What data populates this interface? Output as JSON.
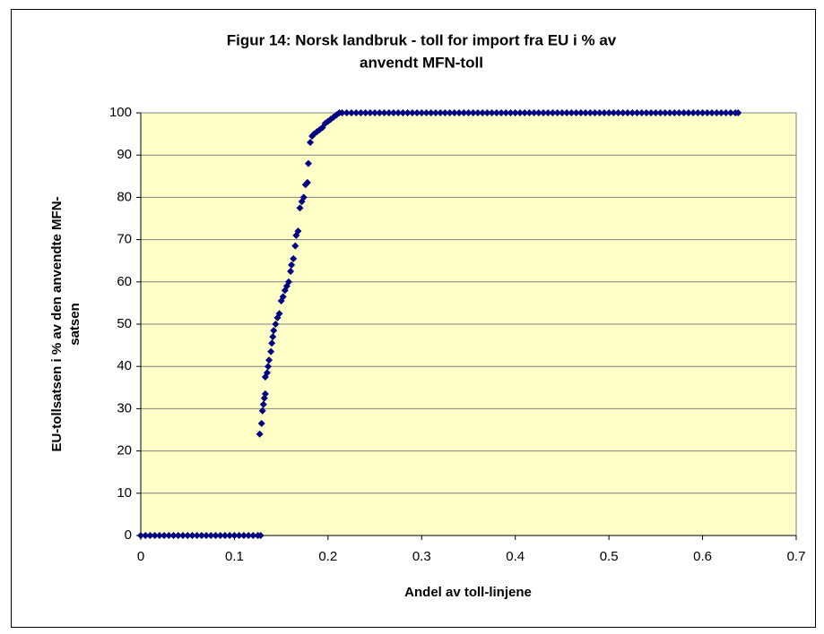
{
  "chart_data": {
    "type": "scatter",
    "title": [
      "Figur 14: Norsk landbruk - toll for import fra EU i % av",
      "anvendt MFN-toll"
    ],
    "xlabel": "Andel av toll-linjene",
    "ylabel": [
      "EU-tollsatsen i % av den anvendte MFN-",
      "satsen"
    ],
    "xlim": [
      0,
      0.7
    ],
    "xticks": [
      0,
      0.1,
      0.2,
      0.3,
      0.4,
      0.5,
      0.6,
      0.7
    ],
    "ylim": [
      0,
      100
    ],
    "yticks": [
      0,
      10,
      20,
      30,
      40,
      50,
      60,
      70,
      80,
      90,
      100
    ],
    "grid": true,
    "color": "#000080",
    "x": [
      0,
      0.005,
      0.01,
      0.015,
      0.02,
      0.025,
      0.03,
      0.035,
      0.04,
      0.045,
      0.05,
      0.055,
      0.06,
      0.065,
      0.07,
      0.075,
      0.08,
      0.085,
      0.09,
      0.095,
      0.1,
      0.105,
      0.11,
      0.115,
      0.12,
      0.125,
      0.128,
      0.127,
      0.129,
      0.13,
      0.131,
      0.132,
      0.133,
      0.133,
      0.135,
      0.136,
      0.137,
      0.139,
      0.14,
      0.141,
      0.142,
      0.144,
      0.146,
      0.148,
      0.15,
      0.152,
      0.154,
      0.156,
      0.158,
      0.16,
      0.161,
      0.163,
      0.165,
      0.166,
      0.168,
      0.17,
      0.172,
      0.174,
      0.176,
      0.178,
      0.179,
      0.181,
      0.183,
      0.185,
      0.188,
      0.191,
      0.194,
      0.197,
      0.2,
      0.203,
      0.206,
      0.209,
      0.212,
      0.215,
      0.22,
      0.225,
      0.23,
      0.235,
      0.24,
      0.245,
      0.25,
      0.255,
      0.26,
      0.265,
      0.27,
      0.275,
      0.28,
      0.285,
      0.29,
      0.295,
      0.3,
      0.305,
      0.31,
      0.315,
      0.32,
      0.325,
      0.33,
      0.335,
      0.34,
      0.345,
      0.35,
      0.355,
      0.36,
      0.365,
      0.37,
      0.375,
      0.38,
      0.385,
      0.39,
      0.395,
      0.4,
      0.405,
      0.41,
      0.415,
      0.42,
      0.425,
      0.43,
      0.435,
      0.44,
      0.445,
      0.45,
      0.455,
      0.46,
      0.465,
      0.47,
      0.475,
      0.48,
      0.485,
      0.49,
      0.495,
      0.5,
      0.505,
      0.51,
      0.515,
      0.52,
      0.525,
      0.53,
      0.535,
      0.54,
      0.545,
      0.55,
      0.555,
      0.56,
      0.565,
      0.57,
      0.575,
      0.58,
      0.585,
      0.59,
      0.595,
      0.6,
      0.605,
      0.61,
      0.615,
      0.62,
      0.625,
      0.63,
      0.635,
      0.638
    ],
    "values": [
      0,
      0,
      0,
      0,
      0,
      0,
      0,
      0,
      0,
      0,
      0,
      0,
      0,
      0,
      0,
      0,
      0,
      0,
      0,
      0,
      0,
      0,
      0,
      0,
      0,
      0,
      0,
      24,
      26.5,
      29.5,
      31,
      32.5,
      33.5,
      37.5,
      38.5,
      40,
      41.5,
      43.5,
      45.5,
      47,
      48.5,
      50,
      51.5,
      52.5,
      55.5,
      56.5,
      58,
      59,
      60,
      62.5,
      64,
      65.5,
      68.5,
      71,
      72,
      77.5,
      79,
      80,
      83,
      83.5,
      88,
      93,
      94.5,
      95,
      95.5,
      96,
      96.5,
      97.5,
      98,
      98.5,
      99,
      99.5,
      100,
      100,
      100,
      100,
      100,
      100,
      100,
      100,
      100,
      100,
      100,
      100,
      100,
      100,
      100,
      100,
      100,
      100,
      100,
      100,
      100,
      100,
      100,
      100,
      100,
      100,
      100,
      100,
      100,
      100,
      100,
      100,
      100,
      100,
      100,
      100,
      100,
      100,
      100,
      100,
      100,
      100,
      100,
      100,
      100,
      100,
      100,
      100,
      100,
      100,
      100,
      100,
      100,
      100,
      100,
      100,
      100,
      100,
      100,
      100,
      100,
      100,
      100,
      100,
      100,
      100,
      100,
      100,
      100,
      100,
      100,
      100,
      100,
      100,
      100,
      100,
      100,
      100,
      100,
      100,
      100,
      100,
      100,
      100,
      100,
      100,
      100
    ]
  }
}
